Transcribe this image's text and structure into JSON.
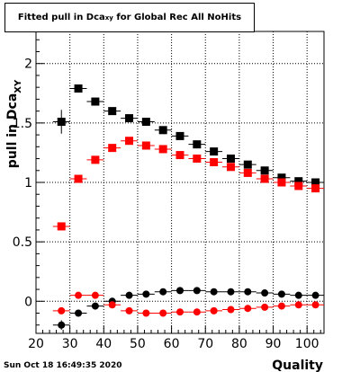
{
  "chart_data": {
    "type": "scatter",
    "title": {
      "prefix": "Fitted pull in Dca",
      "sub": "xy",
      "suffix": " for Global Rec All NoHits"
    },
    "xlabel": "Quality",
    "ylabel": {
      "prefix": "pull in Dca",
      "sub": "XY"
    },
    "xlim": [
      20,
      105
    ],
    "ylim": [
      -0.27,
      2.27
    ],
    "xticks": [
      20,
      30,
      40,
      50,
      60,
      70,
      80,
      90,
      100
    ],
    "yticks": [
      {
        "value": 0,
        "label": "0"
      },
      {
        "value": 0.5,
        "label": "0.5"
      },
      {
        "value": 1,
        "label": "1"
      },
      {
        "value": 1.5,
        "label": "1.5"
      },
      {
        "value": 2,
        "label": "2"
      }
    ],
    "grid": true,
    "series": [
      {
        "color": "#000000",
        "marker": "square",
        "x": [
          27.5,
          32.5,
          37.5,
          42.5,
          47.5,
          52.5,
          57.5,
          62.5,
          67.5,
          72.5,
          77.5,
          82.5,
          87.5,
          92.5,
          97.5,
          102.5
        ],
        "y": [
          1.51,
          1.79,
          1.68,
          1.6,
          1.54,
          1.51,
          1.44,
          1.39,
          1.32,
          1.26,
          1.2,
          1.15,
          1.1,
          1.04,
          1.01,
          1.0
        ],
        "yerr": [
          0.1,
          0.03,
          0.02,
          0.02,
          0.01,
          0.01,
          0.01,
          0.01,
          0.01,
          0.01,
          0.01,
          0.01,
          0.01,
          0.01,
          0.01,
          0.01
        ]
      },
      {
        "color": "#ff0000",
        "marker": "square",
        "x": [
          27.5,
          32.5,
          37.5,
          42.5,
          47.5,
          52.5,
          57.5,
          62.5,
          67.5,
          72.5,
          77.5,
          82.5,
          87.5,
          92.5,
          97.5,
          102.5
        ],
        "y": [
          0.63,
          1.03,
          1.19,
          1.29,
          1.35,
          1.31,
          1.28,
          1.23,
          1.2,
          1.17,
          1.13,
          1.08,
          1.03,
          1.0,
          0.97,
          0.95
        ],
        "yerr": [
          0.01,
          0.01,
          0.01,
          0.01,
          0.01,
          0.01,
          0.01,
          0.01,
          0.01,
          0.01,
          0.01,
          0.01,
          0.01,
          0.01,
          0.01,
          0.01
        ]
      },
      {
        "color": "#000000",
        "marker": "circle",
        "x": [
          27.5,
          32.5,
          37.5,
          42.5,
          47.5,
          52.5,
          57.5,
          62.5,
          67.5,
          72.5,
          77.5,
          82.5,
          87.5,
          92.5,
          97.5,
          102.5
        ],
        "y": [
          -0.2,
          -0.1,
          -0.04,
          0.0,
          0.05,
          0.06,
          0.08,
          0.09,
          0.09,
          0.08,
          0.08,
          0.08,
          0.07,
          0.06,
          0.05,
          0.05
        ],
        "yerr": [
          0.04,
          0.02,
          0.01,
          0.01,
          0.01,
          0.01,
          0.01,
          0.01,
          0.01,
          0.01,
          0.01,
          0.01,
          0.01,
          0.01,
          0.01,
          0.01
        ]
      },
      {
        "color": "#ff0000",
        "marker": "circle",
        "x": [
          27.5,
          32.5,
          37.5,
          42.5,
          47.5,
          52.5,
          57.5,
          62.5,
          67.5,
          72.5,
          77.5,
          82.5,
          87.5,
          92.5,
          97.5,
          102.5
        ],
        "y": [
          -0.08,
          0.05,
          0.05,
          -0.03,
          -0.08,
          -0.1,
          -0.1,
          -0.09,
          -0.09,
          -0.08,
          -0.07,
          -0.06,
          -0.05,
          -0.04,
          -0.03,
          -0.03
        ],
        "yerr": [
          0.02,
          0.01,
          0.01,
          0.01,
          0.01,
          0.01,
          0.01,
          0.01,
          0.01,
          0.01,
          0.01,
          0.01,
          0.01,
          0.01,
          0.01,
          0.01
        ]
      }
    ]
  },
  "footer": {
    "timestamp": "Sun Oct 18 16:49:35 2020"
  }
}
